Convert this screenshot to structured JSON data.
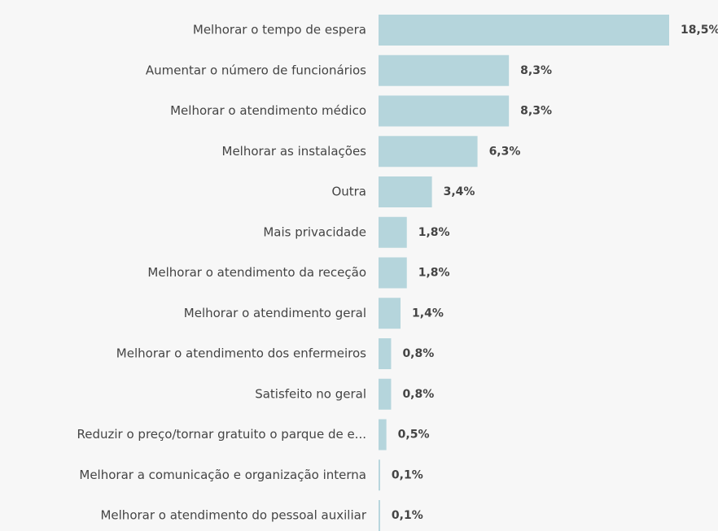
{
  "chart_data": {
    "type": "bar",
    "orientation": "horizontal",
    "color": "#b5d5dc",
    "categories": [
      "Melhorar o tempo de espera",
      "Aumentar o número de funcionários",
      "Melhorar o atendimento médico",
      "Melhorar as instalações",
      "Outra",
      "Mais privacidade",
      "Melhorar o atendimento da receção",
      "Melhorar o atendimento geral",
      "Melhorar o atendimento dos enfermeiros",
      "Satisfeito no geral",
      "Reduzir o preço/tornar gratuito o parque de e...",
      "Melhorar a comunicação e organização interna",
      "Melhorar o atendimento do pessoal auxiliar"
    ],
    "values": [
      18.5,
      8.3,
      8.3,
      6.3,
      3.4,
      1.8,
      1.8,
      1.4,
      0.8,
      0.8,
      0.5,
      0.1,
      0.1
    ],
    "value_labels": [
      "18,5%",
      "8,3%",
      "8,3%",
      "6,3%",
      "3,4%",
      "1,8%",
      "1,8%",
      "1,4%",
      "0,8%",
      "0,8%",
      "0,5%",
      "0,1%",
      "0,1%"
    ]
  }
}
